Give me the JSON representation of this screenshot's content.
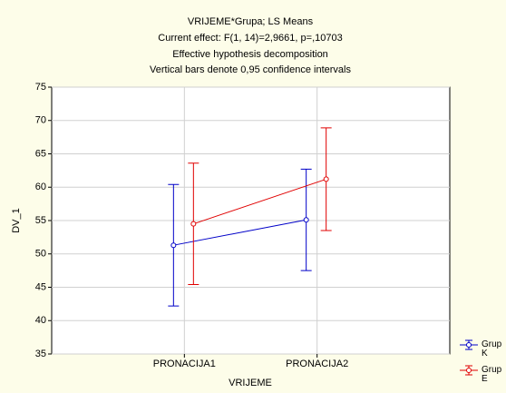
{
  "chart_data": {
    "type": "line",
    "title": "VRIJEME*Grupa; LS Means",
    "subtitle": [
      "Current effect: F(1, 14)=2,9661, p=,10703",
      "Effective hypothesis decomposition",
      "Vertical bars denote 0,95 confidence intervals"
    ],
    "x_label": "VRIJEME",
    "y_label": "DV_1",
    "categories": [
      "PRONACIJA1",
      "PRONACIJA2"
    ],
    "series": [
      {
        "name": "Grup K",
        "color": "#0000c8",
        "values": [
          51.3,
          55.1
        ],
        "errors": [
          9.1,
          7.6
        ]
      },
      {
        "name": "Grup E",
        "color": "#e00000",
        "values": [
          54.5,
          61.2
        ],
        "errors": [
          9.1,
          7.7
        ]
      }
    ],
    "ylim": [
      35,
      75
    ],
    "yticks": [
      35,
      40,
      45,
      50,
      55,
      60,
      65,
      70,
      75
    ],
    "grid": true,
    "legend": "bottom-right"
  }
}
